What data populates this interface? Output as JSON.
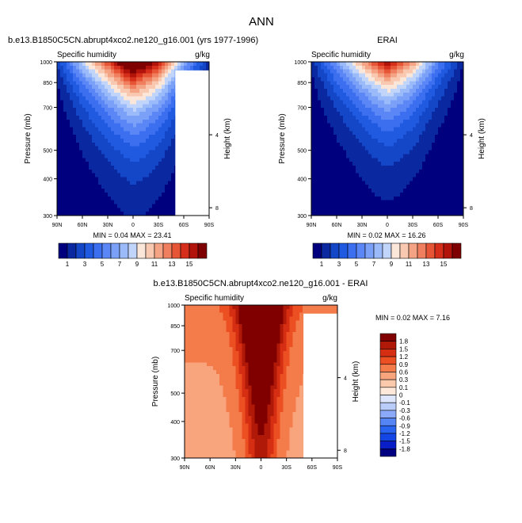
{
  "figure": {
    "title": "ANN"
  },
  "panels": [
    {
      "title": "b.e13.B1850C5CN.abrupt4xco2.ne120_g16.001 (yrs 1977-1996)",
      "title_align": "left",
      "left_label": "Specific humidity",
      "right_label": "g/kg",
      "min_max_text": "MIN =  0.04  MAX = 23.41",
      "colorbar": "horizontal",
      "surface_mask": true
    },
    {
      "title": "ERAI",
      "title_align": "center",
      "left_label": "Specific humidity",
      "right_label": "g/kg",
      "min_max_text": "MIN =  0.02  MAX = 16.26",
      "colorbar": "horizontal",
      "surface_mask": false
    },
    {
      "title": "b.e13.B1850C5CN.abrupt4xco2.ne120_g16.001 - ERAI",
      "title_align": "center",
      "left_label": "Specific humidity",
      "right_label": "g/kg",
      "min_max_text": "MIN =  0.02  MAX =  7.16",
      "colorbar": "vertical",
      "surface_mask": true
    }
  ],
  "colors": {
    "q_levels": [
      "#00007f",
      "#0a28a0",
      "#1446c8",
      "#205ae0",
      "#3c6ef0",
      "#5a87f5",
      "#7aa1f7",
      "#9bbaf9",
      "#c1d5fb",
      "#fbe6da",
      "#f8c8b0",
      "#f4a384",
      "#ef7f5e",
      "#e65536",
      "#d52e1a",
      "#b2140c",
      "#7f0000"
    ],
    "diff_levels": [
      "#000080",
      "#0a1ec8",
      "#1446e6",
      "#2864f0",
      "#5584f5",
      "#8aa9f8",
      "#b9ccfa",
      "#dde6fc",
      "#fde8da",
      "#fbc9ab",
      "#f8a57d",
      "#f47c4b",
      "#ec5022",
      "#d52e12",
      "#b01808",
      "#800000"
    ]
  },
  "chart_data": [
    {
      "type": "heatmap",
      "subtype": "filled-contour latitude-pressure cross-section",
      "title": "b.e13.B1850C5CN.abrupt4xco2.ne120_g16.001 (yrs 1977-1996)",
      "variable": "Specific humidity",
      "units": "g/kg",
      "xlabel": "",
      "ylabel": "Pressure (mb)",
      "y2label": "Height (km)",
      "x_ticks": [
        "90N",
        "60N",
        "30N",
        "0",
        "30S",
        "60S",
        "90S"
      ],
      "x_range_lat": [
        90,
        -90
      ],
      "y_ticks": [
        300,
        400,
        500,
        700,
        850,
        1000
      ],
      "y_range": [
        1000,
        300
      ],
      "y_scale": "log",
      "y2_ticks": [
        8,
        4
      ],
      "levels": [
        1,
        2,
        3,
        4,
        5,
        6,
        7,
        8,
        9,
        10,
        11,
        12,
        13,
        14,
        15,
        16
      ],
      "colorbar_labels": [
        "1",
        "3",
        "5",
        "7",
        "9",
        "11",
        "13",
        "15"
      ],
      "min": 0.04,
      "max": 23.41,
      "surface_q_profile": {
        "lat": [
          90,
          60,
          30,
          0,
          -30,
          -60,
          -90
        ],
        "q": [
          2.0,
          8.5,
          14.0,
          20.0,
          15.5,
          7.0,
          1.6
        ]
      },
      "scale_height_km": 1.95
    },
    {
      "type": "heatmap",
      "subtype": "filled-contour latitude-pressure cross-section",
      "title": "ERAI",
      "variable": "Specific humidity",
      "units": "g/kg",
      "xlabel": "",
      "ylabel": "Pressure (mb)",
      "y2label": "Height (km)",
      "x_ticks": [
        "90N",
        "60N",
        "30N",
        "0",
        "30S",
        "60S",
        "90S"
      ],
      "x_range_lat": [
        90,
        -90
      ],
      "y_ticks": [
        300,
        400,
        500,
        700,
        850,
        1000
      ],
      "y_range": [
        1000,
        300
      ],
      "y_scale": "log",
      "y2_ticks": [
        8,
        4
      ],
      "levels": [
        1,
        2,
        3,
        4,
        5,
        6,
        7,
        8,
        9,
        10,
        11,
        12,
        13,
        14,
        15,
        16
      ],
      "colorbar_labels": [
        "1",
        "3",
        "5",
        "7",
        "9",
        "11",
        "13",
        "15"
      ],
      "min": 0.02,
      "max": 16.26,
      "surface_q_profile": {
        "lat": [
          90,
          60,
          30,
          0,
          -30,
          -60,
          -90
        ],
        "q": [
          1.4,
          6.5,
          11.5,
          16.2,
          12.0,
          5.5,
          1.0
        ]
      },
      "scale_height_km": 1.85
    },
    {
      "type": "heatmap",
      "subtype": "filled-contour latitude-pressure cross-section (difference)",
      "title": "b.e13.B1850C5CN.abrupt4xco2.ne120_g16.001 - ERAI",
      "variable": "Specific humidity",
      "units": "g/kg",
      "xlabel": "",
      "ylabel": "Pressure (mb)",
      "y2label": "Height (km)",
      "x_ticks": [
        "90N",
        "60N",
        "30N",
        "0",
        "30S",
        "60S",
        "90S"
      ],
      "x_range_lat": [
        90,
        -90
      ],
      "y_ticks": [
        300,
        400,
        500,
        700,
        850,
        1000
      ],
      "y_range": [
        1000,
        300
      ],
      "y_scale": "log",
      "y2_ticks": [
        8,
        4
      ],
      "levels": [
        -1.8,
        -1.5,
        -1.2,
        -0.9,
        -0.6,
        -0.3,
        -0.1,
        0,
        0.1,
        0.3,
        0.6,
        0.9,
        1.2,
        1.5,
        1.8
      ],
      "colorbar_labels": [
        "1.8",
        "1.5",
        "1.2",
        "0.9",
        "0.6",
        "0.3",
        "0.1",
        "0",
        "-0.1",
        "-0.3",
        "-0.6",
        "-0.9",
        "-1.2",
        "-1.5",
        "-1.8"
      ],
      "min": 0.02,
      "max": 7.16
    }
  ]
}
